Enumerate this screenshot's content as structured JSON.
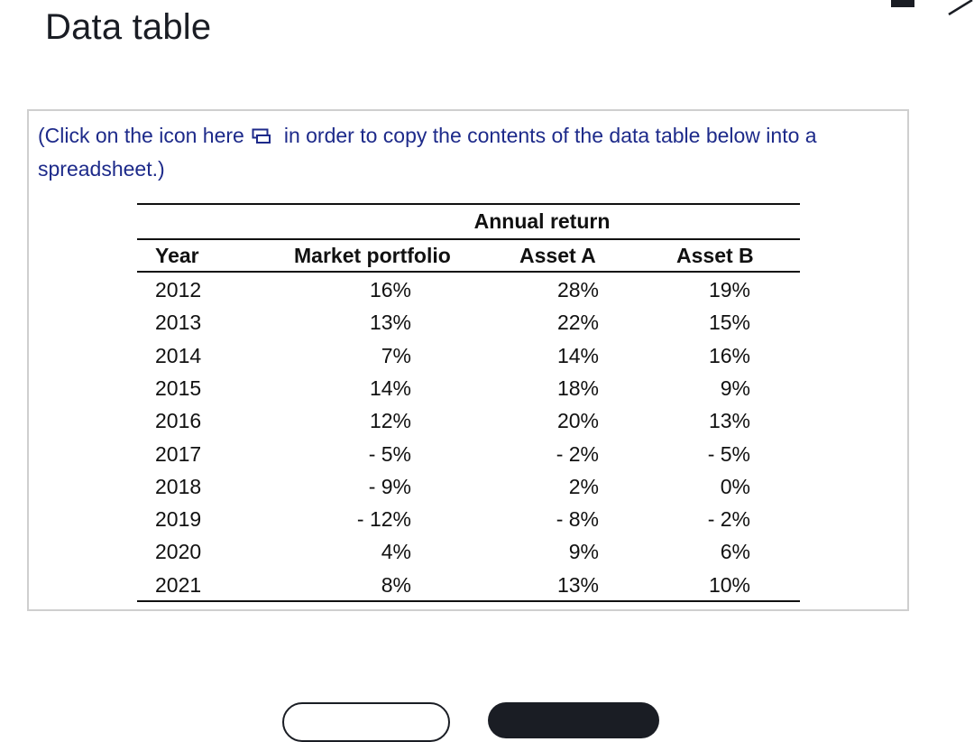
{
  "window": {
    "title": "Data table",
    "minimize_icon": "minimize-icon",
    "close_icon": "close-icon"
  },
  "instruction": {
    "before": "(Click on the icon here",
    "after": "in order to copy the contents of the data table below into a spreadsheet.)",
    "icon": "copy-icon"
  },
  "table": {
    "group_header": "Annual return",
    "headers": [
      "Year",
      "Market portfolio",
      "Asset A",
      "Asset B"
    ],
    "rows": [
      [
        "2012",
        "16%",
        "28%",
        "19%"
      ],
      [
        "2013",
        "13%",
        "22%",
        "15%"
      ],
      [
        "2014",
        "7%",
        "14%",
        "16%"
      ],
      [
        "2015",
        "14%",
        "18%",
        "9%"
      ],
      [
        "2016",
        "12%",
        "20%",
        "13%"
      ],
      [
        "2017",
        "- 5%",
        "- 2%",
        "- 5%"
      ],
      [
        "2018",
        "- 9%",
        "2%",
        "0%"
      ],
      [
        "2019",
        "- 12%",
        "- 8%",
        "- 2%"
      ],
      [
        "2020",
        "4%",
        "9%",
        "6%"
      ],
      [
        "2021",
        "8%",
        "13%",
        "10%"
      ]
    ]
  },
  "colors": {
    "instruction_text": "#1d2a8a",
    "title_text": "#1a1d24",
    "panel_border": "#cfcfcf",
    "primary_button": "#1a1d24"
  }
}
